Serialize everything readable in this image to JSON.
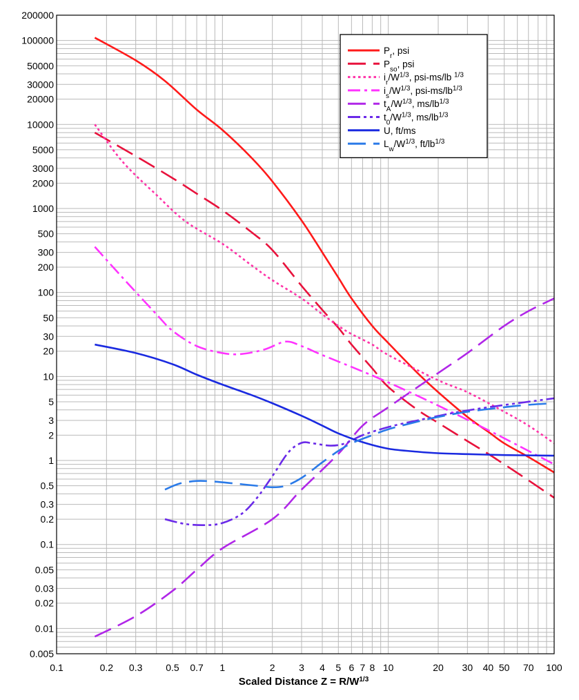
{
  "chart_data": {
    "type": "line",
    "title": "",
    "xlabel": "Scaled Distance Z = R/W",
    "xlabel_sup": "1/3",
    "ylabel": "",
    "xscale": "log",
    "yscale": "log",
    "xlim": [
      0.1,
      100
    ],
    "ylim": [
      0.005,
      200000
    ],
    "grid": true,
    "legend_position": "top-right",
    "x_tick_labels": [
      {
        "v": 0.1,
        "t": "0.1"
      },
      {
        "v": 0.2,
        "t": "0.2"
      },
      {
        "v": 0.3,
        "t": "0.3"
      },
      {
        "v": 0.5,
        "t": "0.5"
      },
      {
        "v": 0.7,
        "t": "0.7"
      },
      {
        "v": 1,
        "t": "1"
      },
      {
        "v": 2,
        "t": "2"
      },
      {
        "v": 3,
        "t": "3"
      },
      {
        "v": 4,
        "t": "4"
      },
      {
        "v": 5,
        "t": "5"
      },
      {
        "v": 6,
        "t": "6"
      },
      {
        "v": 7,
        "t": "7"
      },
      {
        "v": 8,
        "t": "8"
      },
      {
        "v": 10,
        "t": "10"
      },
      {
        "v": 20,
        "t": "20"
      },
      {
        "v": 30,
        "t": "30"
      },
      {
        "v": 40,
        "t": "40"
      },
      {
        "v": 50,
        "t": "50"
      },
      {
        "v": 70,
        "t": "70"
      },
      {
        "v": 100,
        "t": "100"
      }
    ],
    "y_tick_labels": [
      {
        "v": 200000,
        "t": "200000"
      },
      {
        "v": 100000,
        "t": "100000"
      },
      {
        "v": 50000,
        "t": "50000"
      },
      {
        "v": 30000,
        "t": "30000"
      },
      {
        "v": 20000,
        "t": "20000"
      },
      {
        "v": 10000,
        "t": "10000"
      },
      {
        "v": 5000,
        "t": "5000"
      },
      {
        "v": 3000,
        "t": "3000"
      },
      {
        "v": 2000,
        "t": "2000"
      },
      {
        "v": 1000,
        "t": "1000"
      },
      {
        "v": 500,
        "t": "500"
      },
      {
        "v": 300,
        "t": "300"
      },
      {
        "v": 200,
        "t": "200"
      },
      {
        "v": 100,
        "t": "100"
      },
      {
        "v": 50,
        "t": "50"
      },
      {
        "v": 30,
        "t": "30"
      },
      {
        "v": 20,
        "t": "20"
      },
      {
        "v": 10,
        "t": "10"
      },
      {
        "v": 5,
        "t": "5"
      },
      {
        "v": 3,
        "t": "3"
      },
      {
        "v": 2,
        "t": "2"
      },
      {
        "v": 1,
        "t": "1"
      },
      {
        "v": 0.5,
        "t": "0.5"
      },
      {
        "v": 0.3,
        "t": "0.3"
      },
      {
        "v": 0.2,
        "t": "0.2"
      },
      {
        "v": 0.1,
        "t": "0.1"
      },
      {
        "v": 0.05,
        "t": "0.05"
      },
      {
        "v": 0.03,
        "t": "0.03"
      },
      {
        "v": 0.02,
        "t": "0.02"
      },
      {
        "v": 0.01,
        "t": "0.01"
      },
      {
        "v": 0.005,
        "t": "0.005"
      }
    ],
    "series": [
      {
        "key": "pr",
        "legend_parts": [
          [
            "P",
            ""
          ],
          [
            "r",
            "sub"
          ],
          [
            ", psi",
            ""
          ]
        ],
        "color": "#ff1a1a",
        "dash": "solid",
        "x": [
          0.17,
          0.3,
          0.45,
          0.7,
          1.0,
          1.5,
          2.0,
          3.0,
          4.0,
          5.0,
          6.0,
          8.0,
          10,
          15,
          20,
          30,
          40,
          50,
          70,
          100
        ],
        "y": [
          108000,
          58000,
          33000,
          15000,
          8600,
          4000,
          2100,
          720,
          300,
          150,
          85,
          40,
          25,
          11,
          6.5,
          3.3,
          2.2,
          1.6,
          1.1,
          0.72
        ]
      },
      {
        "key": "pso",
        "legend_parts": [
          [
            "P",
            ""
          ],
          [
            "so",
            "sub"
          ],
          [
            ", psi",
            ""
          ]
        ],
        "color": "#e8123c",
        "dash": "long",
        "x": [
          0.17,
          0.3,
          0.5,
          0.7,
          1.0,
          1.5,
          2.0,
          3.0,
          4.0,
          5.0,
          6.0,
          8.0,
          10,
          15,
          20,
          30,
          40,
          50,
          70,
          100
        ],
        "y": [
          8000,
          4200,
          2300,
          1500,
          950,
          520,
          320,
          120,
          62,
          38,
          24,
          12.5,
          7.5,
          4.0,
          2.8,
          1.7,
          1.2,
          0.9,
          0.58,
          0.36
        ]
      },
      {
        "key": "ir",
        "legend_parts": [
          [
            "i",
            ""
          ],
          [
            "r",
            "sub"
          ],
          [
            "/W",
            ""
          ],
          [
            "1/3",
            "sup"
          ],
          [
            ", psi-ms/lb ",
            ""
          ],
          [
            "1/3",
            "sup"
          ]
        ],
        "color": "#ff33a8",
        "dash": "dot",
        "x": [
          0.17,
          0.25,
          0.4,
          0.6,
          1.0,
          1.5,
          2.0,
          3.0,
          4.0,
          5.0,
          6.0,
          8.0,
          10,
          20,
          30,
          50,
          70,
          100
        ],
        "y": [
          10000,
          3600,
          1450,
          700,
          380,
          210,
          140,
          85,
          55,
          40,
          32,
          24,
          18,
          9,
          6.5,
          3.8,
          2.6,
          1.6
        ]
      },
      {
        "key": "is",
        "legend_parts": [
          [
            "i",
            ""
          ],
          [
            "s",
            "sub"
          ],
          [
            "/W",
            ""
          ],
          [
            "1/3",
            "sup"
          ],
          [
            ", psi-ms/lb",
            ""
          ],
          [
            "1/3",
            "sup"
          ]
        ],
        "color": "#ff33ff",
        "dash": "dashdot",
        "x": [
          0.17,
          0.25,
          0.4,
          0.5,
          0.7,
          1.0,
          1.3,
          1.8,
          2.4,
          3.0,
          4.0,
          6.0,
          10,
          20,
          40,
          70,
          100
        ],
        "y": [
          350,
          150,
          55,
          35,
          23,
          19,
          18.5,
          21,
          26,
          23,
          18,
          13,
          8.5,
          4.5,
          2.3,
          1.3,
          0.9
        ]
      },
      {
        "key": "ta",
        "legend_parts": [
          [
            "t",
            ""
          ],
          [
            "A",
            "sub"
          ],
          [
            "/W",
            ""
          ],
          [
            "1/3",
            "sup"
          ],
          [
            ", ms/lb",
            ""
          ],
          [
            "1/3",
            "sup"
          ]
        ],
        "color": "#b026e8",
        "dash": "long",
        "x": [
          0.17,
          0.3,
          0.5,
          0.7,
          1.0,
          2.0,
          3.0,
          5.0,
          7.0,
          10,
          20,
          30,
          50,
          70,
          100
        ],
        "y": [
          0.008,
          0.014,
          0.028,
          0.05,
          0.09,
          0.2,
          0.45,
          1.2,
          2.6,
          4.3,
          11,
          19,
          40,
          60,
          85
        ]
      },
      {
        "key": "to",
        "legend_parts": [
          [
            "t",
            ""
          ],
          [
            "0",
            "sub"
          ],
          [
            "/W",
            ""
          ],
          [
            "1/3",
            "sup"
          ],
          [
            ", ms/lb",
            ""
          ],
          [
            "1/3",
            "sup"
          ]
        ],
        "color": "#6a2ae8",
        "dash": "dashdotdot",
        "x": [
          0.45,
          0.6,
          0.8,
          1.0,
          1.3,
          1.6,
          2.0,
          2.5,
          3.0,
          3.5,
          4.5,
          5.5,
          7.0,
          10,
          15,
          25,
          40,
          70,
          100
        ],
        "y": [
          0.2,
          0.175,
          0.17,
          0.18,
          0.23,
          0.35,
          0.65,
          1.25,
          1.62,
          1.6,
          1.5,
          1.6,
          2.0,
          2.5,
          3.0,
          3.7,
          4.3,
          5.0,
          5.5
        ]
      },
      {
        "key": "u",
        "legend_parts": [
          [
            "U, ft/ms",
            ""
          ]
        ],
        "color": "#1a2ae0",
        "dash": "solid",
        "x": [
          0.17,
          0.3,
          0.5,
          0.7,
          1.0,
          1.5,
          2.0,
          3.0,
          4.0,
          5.0,
          7.0,
          10,
          15,
          20,
          30,
          50,
          70,
          100
        ],
        "y": [
          24,
          19,
          14,
          10.5,
          8,
          6,
          4.8,
          3.4,
          2.6,
          2.1,
          1.65,
          1.38,
          1.27,
          1.22,
          1.19,
          1.16,
          1.15,
          1.14
        ]
      },
      {
        "key": "lw",
        "legend_parts": [
          [
            "L",
            ""
          ],
          [
            "w",
            "sub"
          ],
          [
            "/W",
            ""
          ],
          [
            "1/3",
            "sup"
          ],
          [
            ", ft/lb",
            ""
          ],
          [
            "1/3",
            "sup"
          ]
        ],
        "color": "#2a7ae8",
        "dash": "long",
        "x": [
          0.45,
          0.55,
          0.7,
          0.9,
          1.2,
          1.6,
          2.0,
          2.4,
          3.0,
          4.0,
          5.0,
          6.0,
          8.0,
          10,
          15,
          20,
          30,
          50,
          70,
          100
        ],
        "y": [
          0.45,
          0.53,
          0.57,
          0.56,
          0.53,
          0.5,
          0.48,
          0.5,
          0.62,
          0.95,
          1.3,
          1.6,
          2.0,
          2.35,
          2.9,
          3.3,
          3.8,
          4.3,
          4.6,
          4.8
        ]
      }
    ]
  }
}
